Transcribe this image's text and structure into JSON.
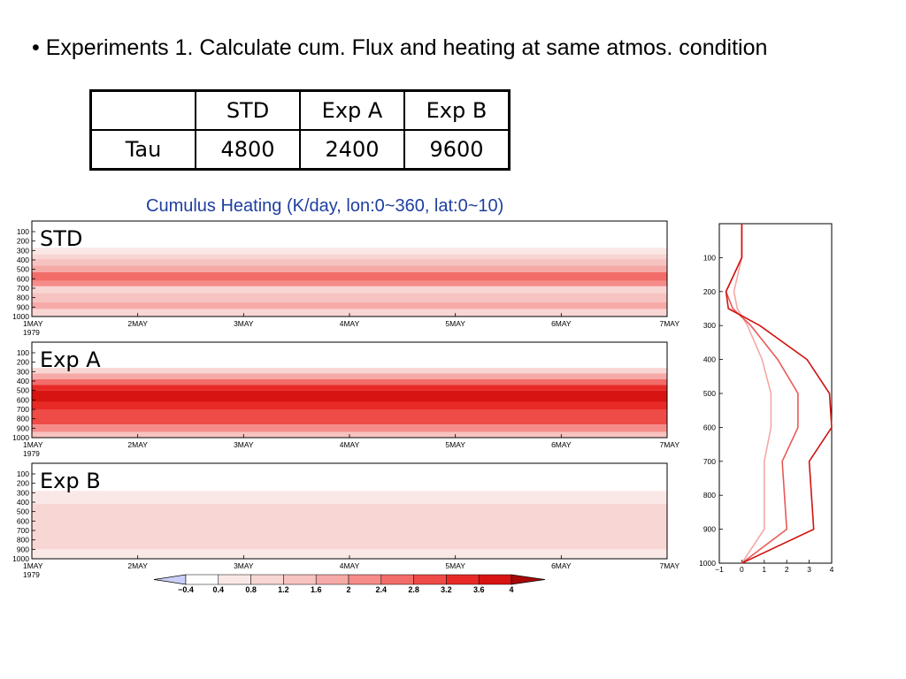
{
  "slide": {
    "title": "• Experiments 1. Calculate cum. Flux and heating at same atmos. condition"
  },
  "tau_table": {
    "corner": "",
    "columns": [
      "STD",
      "Exp A",
      "Exp B"
    ],
    "row_label": "Tau",
    "values": [
      "4800",
      "2400",
      "9600"
    ]
  },
  "chart_data": [
    {
      "type": "heatmap",
      "title": "Cumulus Heating (K/day, lon:0~360, lat:0~10)",
      "panels": [
        {
          "label": "STD",
          "bands": [
            {
              "from": 100,
              "to": 175,
              "level": -0.4
            },
            {
              "from": 175,
              "to": 270,
              "level": 0
            },
            {
              "from": 270,
              "to": 340,
              "level": 0.4
            },
            {
              "from": 340,
              "to": 390,
              "level": 0.8
            },
            {
              "from": 390,
              "to": 460,
              "level": 1.2
            },
            {
              "from": 460,
              "to": 530,
              "level": 1.6
            },
            {
              "from": 530,
              "to": 620,
              "level": 2.4
            },
            {
              "from": 620,
              "to": 680,
              "level": 2
            },
            {
              "from": 680,
              "to": 750,
              "level": 0.8
            },
            {
              "from": 750,
              "to": 850,
              "level": 1.2
            },
            {
              "from": 850,
              "to": 920,
              "level": 1.6
            },
            {
              "from": 920,
              "to": 1000,
              "level": 0.8
            }
          ]
        },
        {
          "label": "Exp A",
          "bands": [
            {
              "from": 100,
              "to": 180,
              "level": -0.4
            },
            {
              "from": 180,
              "to": 260,
              "level": 0
            },
            {
              "from": 260,
              "to": 320,
              "level": 0.8
            },
            {
              "from": 320,
              "to": 380,
              "level": 1.6
            },
            {
              "from": 380,
              "to": 440,
              "level": 2.4
            },
            {
              "from": 440,
              "to": 500,
              "level": 3.2
            },
            {
              "from": 500,
              "to": 620,
              "level": 3.6
            },
            {
              "from": 620,
              "to": 700,
              "level": 3.2
            },
            {
              "from": 700,
              "to": 860,
              "level": 2.8
            },
            {
              "from": 860,
              "to": 940,
              "level": 2
            },
            {
              "from": 940,
              "to": 1000,
              "level": 1.2
            }
          ]
        },
        {
          "label": "Exp B",
          "bands": [
            {
              "from": 100,
              "to": 280,
              "level": 0
            },
            {
              "from": 280,
              "to": 420,
              "level": 0.4
            },
            {
              "from": 420,
              "to": 900,
              "level": 0.8
            },
            {
              "from": 900,
              "to": 1000,
              "level": 0.4
            }
          ]
        }
      ],
      "x_ticks": [
        "1MAY",
        "2MAY",
        "3MAY",
        "4MAY",
        "5MAY",
        "6MAY",
        "7MAY"
      ],
      "x_year": "1979",
      "y_ticks": [
        100,
        200,
        300,
        400,
        500,
        600,
        700,
        800,
        900,
        1000
      ],
      "ylim": [
        1000,
        100
      ],
      "colorbar": {
        "levels": [
          -0.4,
          0.4,
          0.8,
          1.2,
          1.6,
          2,
          2.4,
          2.8,
          3.2,
          3.6,
          4
        ],
        "labels": [
          "−0.4",
          "0.4",
          "0.8",
          "1.2",
          "1.6",
          "2",
          "2.4",
          "2.8",
          "3.2",
          "3.6",
          "4"
        ],
        "colors": [
          "#c9cff8",
          "#ffffff",
          "#f9e8e6",
          "#f8d6d4",
          "#f7c3c1",
          "#f6aaa8",
          "#f58c89",
          "#f26c69",
          "#ef4b47",
          "#e82a26",
          "#d81412",
          "#a80808"
        ]
      }
    },
    {
      "type": "line",
      "x_ticks": [
        "−1",
        "0",
        "1",
        "2",
        "3",
        "4"
      ],
      "xlim": [
        -1,
        4
      ],
      "y_ticks": [
        100,
        200,
        300,
        400,
        500,
        600,
        700,
        800,
        900,
        1000
      ],
      "ylim": [
        1000,
        0
      ],
      "series": [
        {
          "color": "#f5a8a6",
          "points": [
            [
              0,
              0
            ],
            [
              0,
              100
            ],
            [
              -0.35,
              200
            ],
            [
              -0.2,
              250
            ],
            [
              0.25,
              300
            ],
            [
              0.9,
              400
            ],
            [
              1.3,
              500
            ],
            [
              1.3,
              600
            ],
            [
              1.0,
              700
            ],
            [
              1.0,
              900
            ],
            [
              0,
              1000
            ]
          ]
        },
        {
          "color": "#e85a56",
          "points": [
            [
              0,
              0
            ],
            [
              0,
              100
            ],
            [
              -0.7,
              200
            ],
            [
              -0.4,
              250
            ],
            [
              0.4,
              300
            ],
            [
              1.6,
              400
            ],
            [
              2.5,
              500
            ],
            [
              2.5,
              600
            ],
            [
              1.8,
              700
            ],
            [
              2.0,
              900
            ],
            [
              0,
              1000
            ]
          ]
        },
        {
          "color": "#d01410",
          "points": [
            [
              0,
              0
            ],
            [
              0,
              100
            ],
            [
              -0.7,
              200
            ],
            [
              -0.6,
              250
            ],
            [
              0.8,
              300
            ],
            [
              2.9,
              400
            ],
            [
              3.9,
              500
            ],
            [
              4.0,
              600
            ],
            [
              3.0,
              700
            ],
            [
              3.2,
              900
            ],
            [
              0,
              1000
            ]
          ]
        }
      ]
    }
  ]
}
